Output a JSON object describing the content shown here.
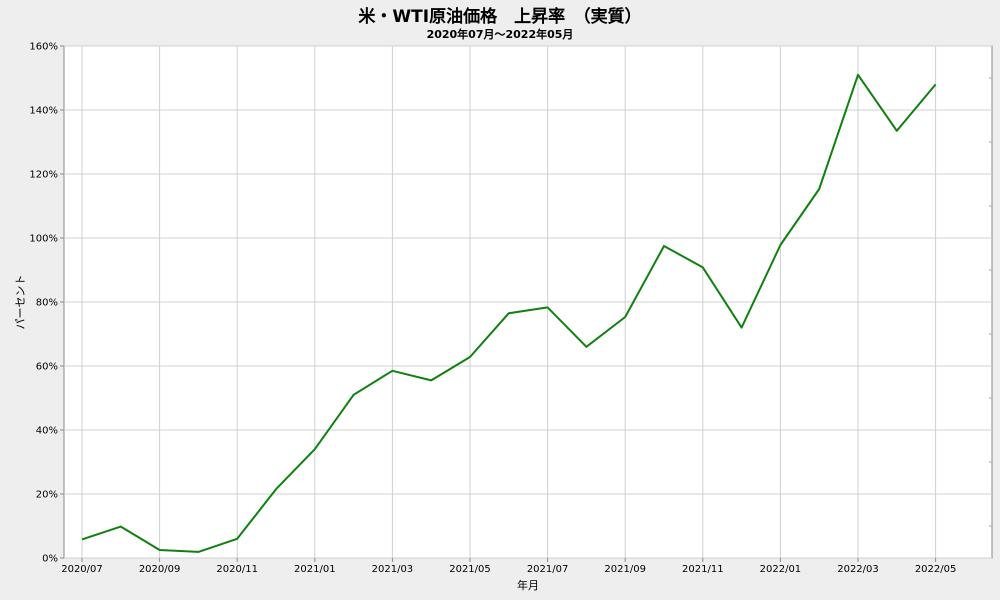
{
  "chart_data": {
    "type": "line",
    "title": "米・WTI原油価格　上昇率　（実質）",
    "subtitle": "2020年07月～2022年05月",
    "xlabel": "年月",
    "ylabel": "パーセント",
    "ylim": [
      0,
      160
    ],
    "yticks": [
      0,
      20,
      40,
      60,
      80,
      100,
      120,
      140,
      160
    ],
    "ytick_suffix": "%",
    "grid": true,
    "x": [
      "2020/07",
      "2020/08",
      "2020/09",
      "2020/10",
      "2020/11",
      "2020/12",
      "2021/01",
      "2021/02",
      "2021/03",
      "2021/04",
      "2021/05",
      "2021/06",
      "2021/07",
      "2021/08",
      "2021/09",
      "2021/10",
      "2021/11",
      "2021/12",
      "2022/01",
      "2022/02",
      "2022/03",
      "2022/04",
      "2022/05"
    ],
    "xtick_labels": [
      "2020/07",
      "2020/09",
      "2020/11",
      "2021/01",
      "2021/03",
      "2021/05",
      "2021/07",
      "2021/09",
      "2021/11",
      "2022/01",
      "2022/03",
      "2022/05"
    ],
    "series": [
      {
        "color": "#108010",
        "values": [
          5.8,
          9.8,
          2.5,
          1.9,
          6.0,
          21.5,
          34.0,
          51.0,
          58.5,
          55.5,
          62.8,
          76.5,
          78.3,
          66.0,
          75.3,
          97.5,
          90.8,
          72.0,
          97.8,
          115.3,
          151.0,
          133.5,
          148.0
        ]
      }
    ]
  }
}
